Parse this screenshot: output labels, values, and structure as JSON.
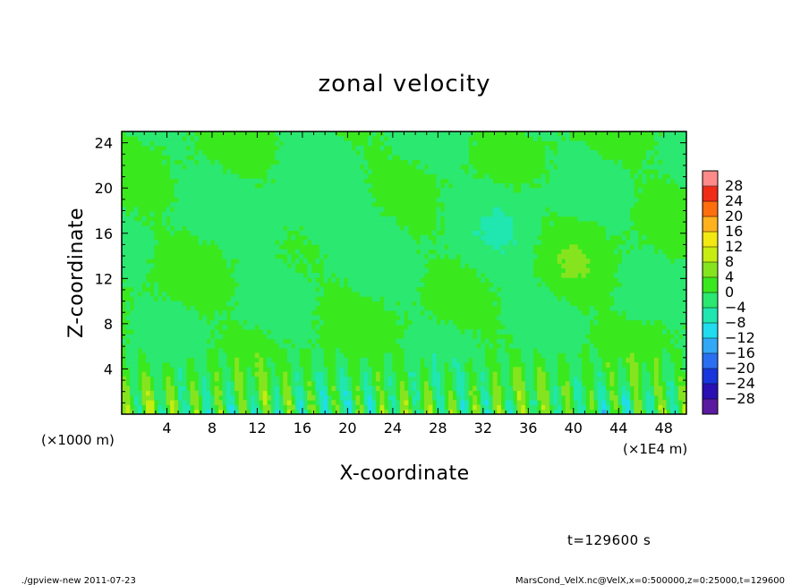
{
  "chart_data": {
    "type": "heatmap",
    "title": "zonal velocity",
    "xlabel": "X-coordinate",
    "ylabel": "Z-coordinate",
    "x_unit": "(×1E4 m)",
    "y_unit": "(×1000 m)",
    "xlim": [
      0,
      50
    ],
    "ylim": [
      0,
      25
    ],
    "x_ticks": [
      4,
      8,
      12,
      16,
      20,
      24,
      28,
      32,
      36,
      40,
      44,
      48
    ],
    "y_ticks": [
      4,
      8,
      12,
      16,
      20,
      24
    ],
    "colorbar": {
      "levels": [
        -32,
        -28,
        -24,
        -20,
        -16,
        -12,
        -8,
        -4,
        0,
        4,
        8,
        12,
        16,
        20,
        24,
        28,
        32
      ],
      "labels": [
        "28",
        "24",
        "20",
        "16",
        "12",
        "8",
        "4",
        "0",
        "−4",
        "−8",
        "−12",
        "−16",
        "−20",
        "−24",
        "−28"
      ],
      "colors": [
        "#5a1aa0",
        "#2a10b4",
        "#1836dc",
        "#2a6ef2",
        "#32a8f6",
        "#20dcee",
        "#20e6b0",
        "#2ae870",
        "#3ae81e",
        "#86e41e",
        "#c6ec12",
        "#f2e812",
        "#ffb21e",
        "#ff6e0e",
        "#f02c18",
        "#ff8a8a"
      ]
    },
    "field_description_values": {
      "background_value_range": [
        -4,
        4
      ],
      "near_surface_value_range": [
        -12,
        12
      ]
    },
    "grid": false
  },
  "footer": {
    "time_label": "t=129600 s",
    "program_label": "./gpview-new   2011-07-23",
    "source_label": "MarsCond_VelX.nc@VelX,x=0:500000,z=0:25000,t=129600"
  }
}
